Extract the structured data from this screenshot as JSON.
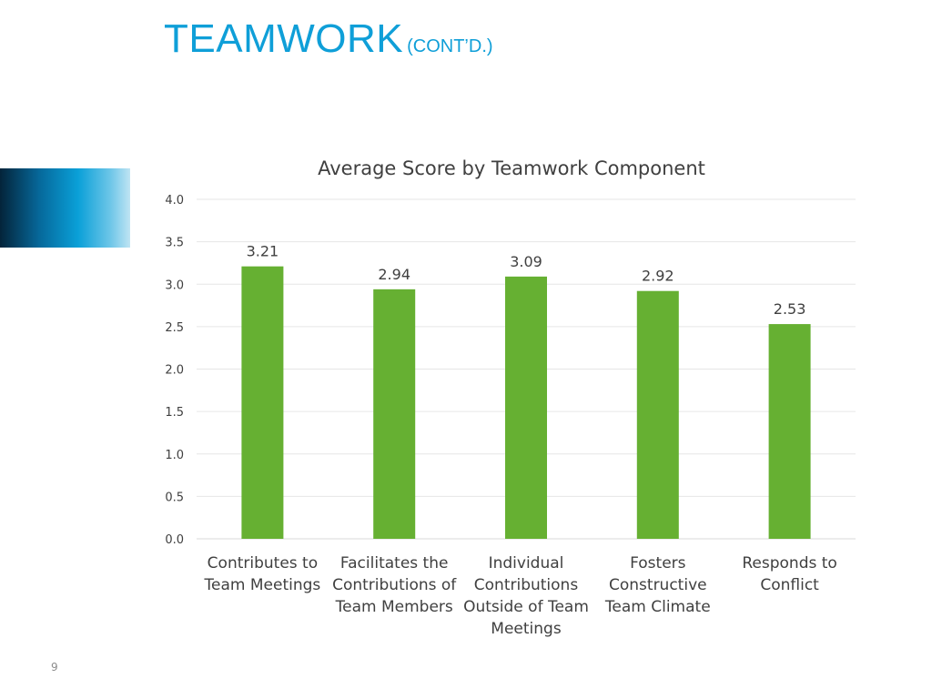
{
  "slide": {
    "title": "TEAMWORK",
    "title_suffix": "(CONT’D.)",
    "page_number": "9",
    "accent_color": "#0f9fd8"
  },
  "chart_data": {
    "type": "bar",
    "title": "Average Score by Teamwork Component",
    "categories": [
      [
        "Contributes to",
        "Team Meetings"
      ],
      [
        "Facilitates the",
        "Contributions of",
        "Team Members"
      ],
      [
        "Individual",
        "Contributions",
        "Outside of Team",
        "Meetings"
      ],
      [
        "Fosters",
        "Constructive",
        "Team Climate"
      ],
      [
        "Responds to",
        "Conflict"
      ]
    ],
    "values": [
      3.21,
      2.94,
      3.09,
      2.92,
      2.53
    ],
    "value_labels": [
      "3.21",
      "2.94",
      "3.09",
      "2.92",
      "2.53"
    ],
    "ylim": [
      0,
      4
    ],
    "yticks": [
      "0.0",
      "0.5",
      "1.0",
      "1.5",
      "2.0",
      "2.5",
      "3.0",
      "3.5",
      "4.0"
    ],
    "xlabel": "",
    "ylabel": "",
    "grid": true,
    "legend": "none",
    "bar_color": "#66b032",
    "grid_color": "#e6e6e6"
  }
}
